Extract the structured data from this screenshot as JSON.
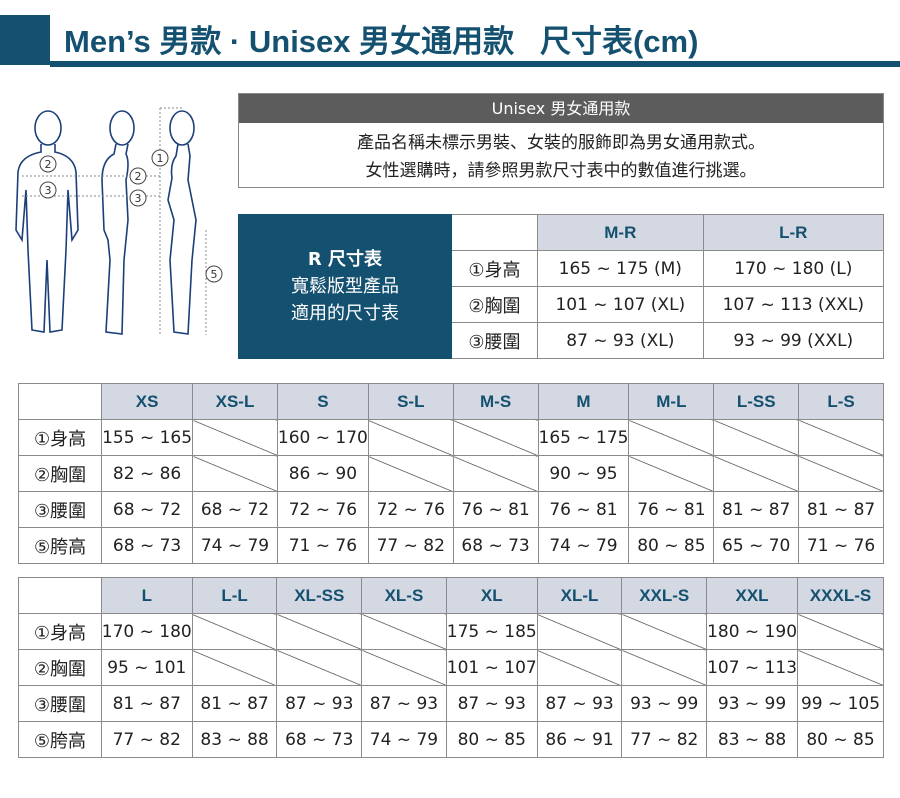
{
  "title": "Men’s 男款 · Unisex 男女通用款   尺寸表(cm)",
  "figure": {
    "markers": [
      "①",
      "②",
      "③",
      "②",
      "③",
      "⑤"
    ]
  },
  "info": {
    "heading": "Unisex 男女通用款",
    "lines": [
      "產品名稱未標示男裝、女裝的服飾即為男女通用款式。",
      "女性選購時，請參照男款尺寸表中的數值進行挑選。"
    ]
  },
  "r_table": {
    "title": "R 尺寸表",
    "subtitle_lines": [
      "寬鬆版型產品",
      "適用的尺寸表"
    ],
    "columns": [
      "M-R",
      "L-R"
    ],
    "rows": [
      {
        "label": "①身高",
        "values": [
          "165 ~ 175 (M)",
          "170 ~ 180 (L)"
        ]
      },
      {
        "label": "②胸圍",
        "values": [
          "101 ~ 107 (XL)",
          "107 ~ 113 (XXL)"
        ]
      },
      {
        "label": "③腰圍",
        "values": [
          "87 ~ 93 (XL)",
          "93 ~ 99 (XXL)"
        ]
      }
    ]
  },
  "table1": {
    "columns": [
      "XS",
      "XS-L",
      "S",
      "S-L",
      "M-S",
      "M",
      "M-L",
      "L-SS",
      "L-S"
    ],
    "rows": [
      {
        "label": "①身高",
        "values": [
          "155 ~ 165",
          null,
          "160 ~ 170",
          null,
          null,
          "165 ~ 175",
          null,
          null,
          null
        ]
      },
      {
        "label": "②胸圍",
        "values": [
          "82 ~ 86",
          null,
          "86 ~ 90",
          null,
          null,
          "90 ~ 95",
          null,
          null,
          null
        ]
      },
      {
        "label": "③腰圍",
        "values": [
          "68 ~ 72",
          "68 ~ 72",
          "72 ~ 76",
          "72 ~ 76",
          "76 ~ 81",
          "76 ~ 81",
          "76 ~ 81",
          "81 ~ 87",
          "81 ~ 87"
        ]
      },
      {
        "label": "⑤胯高",
        "values": [
          "68 ~ 73",
          "74 ~ 79",
          "71 ~ 76",
          "77 ~ 82",
          "68 ~ 73",
          "74 ~ 79",
          "80 ~ 85",
          "65 ~ 70",
          "71 ~ 76"
        ]
      }
    ]
  },
  "table2": {
    "columns": [
      "L",
      "L-L",
      "XL-SS",
      "XL-S",
      "XL",
      "XL-L",
      "XXL-S",
      "XXL",
      "XXXL-S"
    ],
    "rows": [
      {
        "label": "①身高",
        "values": [
          "170 ~ 180",
          null,
          null,
          null,
          "175 ~ 185",
          null,
          null,
          "180 ~ 190",
          null
        ]
      },
      {
        "label": "②胸圍",
        "values": [
          "95 ~ 101",
          null,
          null,
          null,
          "101 ~ 107",
          null,
          null,
          "107 ~ 113",
          null
        ]
      },
      {
        "label": "③腰圍",
        "values": [
          "81 ~ 87",
          "81 ~ 87",
          "87 ~ 93",
          "87 ~ 93",
          "87 ~ 93",
          "87 ~ 93",
          "93 ~ 99",
          "93 ~ 99",
          "99 ~ 105"
        ]
      },
      {
        "label": "⑤胯高",
        "values": [
          "77 ~ 82",
          "83 ~ 88",
          "68 ~ 73",
          "74 ~ 79",
          "80 ~ 85",
          "86 ~ 91",
          "77 ~ 82",
          "83 ~ 88",
          "80 ~ 85"
        ]
      }
    ]
  },
  "colors": {
    "brand": "#14506f",
    "header_bg": "#d4d8e2",
    "info_head": "#5c5c5c"
  }
}
